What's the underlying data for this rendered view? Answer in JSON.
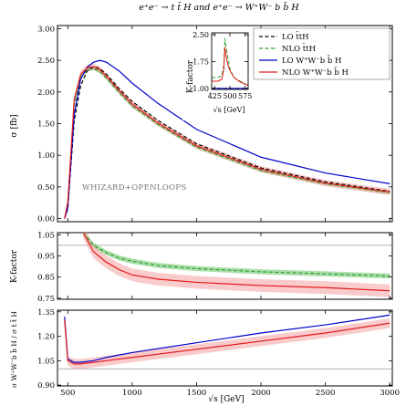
{
  "figure_title": "e⁺e⁻ → t t̄ H  and  e⁺e⁻ → W⁺W⁻ b b̄ H",
  "watermark": "WHIZARD+OPENLOOPS",
  "colors": {
    "lo_ttH": "#000000",
    "nlo_ttH": "#2ca02c",
    "nlo_ttH_band": "#66c266",
    "lo_wwbbH": "#0000cc",
    "nlo_wwbbH": "#e41a1c",
    "nlo_wwbbH_band": "#f4a0a0",
    "ratio_ref": "#999999"
  },
  "chart_data": [
    {
      "type": "line",
      "panel": "main",
      "xlabel": "",
      "ylabel": "σ [fb]",
      "xlim": [
        420,
        3020
      ],
      "ylim": [
        -0.05,
        3.05
      ],
      "yticks": [
        "0.00",
        "0.50",
        "1.00",
        "1.50",
        "2.00",
        "2.50",
        "3.00"
      ],
      "grid": false,
      "legend_position": "upper-right",
      "x": [
        475,
        500,
        550,
        600,
        650,
        700,
        750,
        800,
        900,
        1000,
        1200,
        1500,
        2000,
        2500,
        3000
      ],
      "series": [
        {
          "name": "LO t̄tH",
          "style": "dashed",
          "colorKey": "lo_ttH",
          "values": [
            0.0,
            0.15,
            1.55,
            2.1,
            2.33,
            2.4,
            2.37,
            2.28,
            2.05,
            1.85,
            1.55,
            1.18,
            0.8,
            0.58,
            0.43
          ]
        },
        {
          "name": "NLO t̄tH",
          "style": "dashed",
          "colorKey": "nlo_ttH",
          "band": 0.025,
          "values": [
            0.0,
            0.22,
            1.8,
            2.23,
            2.35,
            2.37,
            2.32,
            2.22,
            1.99,
            1.78,
            1.49,
            1.13,
            0.76,
            0.55,
            0.41
          ]
        },
        {
          "name": "LO W⁺W⁻b b̄ H",
          "style": "solid",
          "colorKey": "lo_wwbbH",
          "values": [
            0.0,
            0.17,
            1.65,
            2.2,
            2.39,
            2.47,
            2.5,
            2.47,
            2.33,
            2.14,
            1.82,
            1.41,
            0.97,
            0.72,
            0.55
          ]
        },
        {
          "name": "NLO W⁺W⁻b b̄ H",
          "style": "solid",
          "colorKey": "nlo_wwbbH",
          "band": 0.05,
          "values": [
            0.0,
            0.26,
            1.88,
            2.28,
            2.38,
            2.4,
            2.35,
            2.25,
            2.02,
            1.81,
            1.51,
            1.15,
            0.78,
            0.56,
            0.42
          ]
        }
      ]
    },
    {
      "type": "line",
      "panel": "inset",
      "xlabel": "√s [GeV]",
      "ylabel": "K-factor",
      "xlim": [
        410,
        590
      ],
      "ylim": [
        0.97,
        2.55
      ],
      "xticks": [
        "425",
        "500",
        "575"
      ],
      "yticks": [
        "1.00",
        "1.75",
        "2.50"
      ],
      "x": [
        410,
        440,
        460,
        470,
        475,
        480,
        490,
        500,
        520,
        550,
        590
      ],
      "series": [
        {
          "name": "LO t̄tH",
          "style": "dashed",
          "colorKey": "lo_ttH",
          "values": [
            1.0,
            1.0,
            1.0,
            1.0,
            1.0,
            1.0,
            1.0,
            1.0,
            1.0,
            1.0,
            1.0
          ]
        },
        {
          "name": "NLO t̄tH",
          "style": "dashed",
          "colorKey": "nlo_ttH",
          "values": [
            1.3,
            1.3,
            1.35,
            1.65,
            2.4,
            2.2,
            1.85,
            1.55,
            1.3,
            1.2,
            1.08
          ]
        },
        {
          "name": "LO W⁺W⁻b b̄ H",
          "style": "solid",
          "colorKey": "lo_wwbbH",
          "values": [
            1.0,
            1.0,
            1.0,
            1.0,
            1.0,
            1.0,
            1.0,
            1.0,
            1.0,
            1.0,
            1.0
          ]
        },
        {
          "name": "NLO W⁺W⁻b b̄ H",
          "style": "solid",
          "colorKey": "nlo_wwbbH",
          "values": [
            1.2,
            1.2,
            1.25,
            1.55,
            2.15,
            1.95,
            1.65,
            1.5,
            1.3,
            1.18,
            1.08
          ]
        }
      ]
    },
    {
      "type": "line",
      "panel": "kfactor",
      "xlabel": "",
      "ylabel": "K-factor",
      "xlim": [
        420,
        3020
      ],
      "ylim": [
        0.745,
        1.06
      ],
      "yticks": [
        "0.75",
        "0.85",
        "0.95",
        "1.05"
      ],
      "reference_line": 1.0,
      "x": [
        620,
        700,
        800,
        900,
        1000,
        1200,
        1500,
        2000,
        2500,
        3000
      ],
      "series": [
        {
          "name": "NLO t̄tH",
          "style": "dashed",
          "colorKey": "nlo_ttH",
          "band": 0.012,
          "values": [
            1.06,
            1.0,
            0.965,
            0.94,
            0.925,
            0.905,
            0.89,
            0.875,
            0.865,
            0.855
          ]
        },
        {
          "name": "NLO W⁺W⁻b b̄ H",
          "style": "solid",
          "colorKey": "nlo_wwbbH",
          "band": 0.03,
          "values": [
            1.06,
            0.97,
            0.92,
            0.885,
            0.86,
            0.84,
            0.825,
            0.81,
            0.8,
            0.785
          ]
        }
      ]
    },
    {
      "type": "line",
      "panel": "ratio",
      "xlabel": "√s [GeV]",
      "ylabel": "σ W⁺W⁻b b̄ H / σ t t̄ H",
      "xlim": [
        420,
        3020
      ],
      "ylim": [
        0.895,
        1.36
      ],
      "yticks": [
        "0.90",
        "1.05",
        "1.20",
        "1.35"
      ],
      "xticks": [
        "500",
        "1000",
        "1500",
        "2000",
        "2500",
        "3000"
      ],
      "reference_line": 1.0,
      "x": [
        475,
        500,
        550,
        600,
        700,
        800,
        1000,
        1500,
        2000,
        2500,
        3000
      ],
      "series": [
        {
          "name": "LO W⁺W⁻b b̄ H",
          "style": "solid",
          "colorKey": "lo_wwbbH",
          "values": [
            1.32,
            1.06,
            1.04,
            1.04,
            1.05,
            1.07,
            1.1,
            1.16,
            1.22,
            1.27,
            1.33
          ]
        },
        {
          "name": "NLO W⁺W⁻b b̄ H",
          "style": "solid",
          "colorKey": "nlo_wwbbH",
          "band": 0.03,
          "values": [
            1.3,
            1.05,
            1.03,
            1.03,
            1.04,
            1.05,
            1.07,
            1.12,
            1.17,
            1.22,
            1.28
          ]
        }
      ]
    }
  ]
}
